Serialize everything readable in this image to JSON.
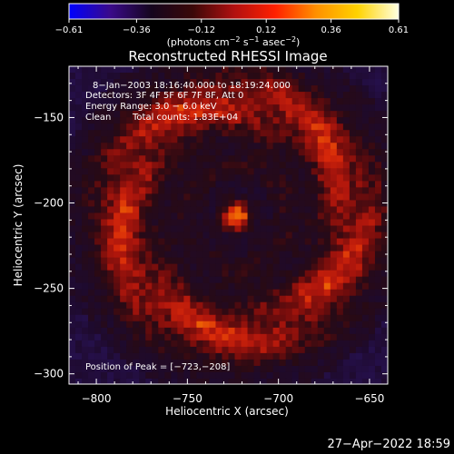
{
  "chart_data": {
    "type": "heatmap",
    "title": "Reconstructed RHESSI Image",
    "xlabel": "Heliocentric X (arcsec)",
    "ylabel": "Heliocentric Y (arcsec)",
    "xlim": [
      -815,
      -640
    ],
    "ylim": [
      -306,
      -120
    ],
    "x_ticks": [
      -800,
      -750,
      -700,
      -650
    ],
    "y_ticks": [
      -150,
      -200,
      -250,
      -300
    ],
    "x_tick_labels": [
      "−800",
      "−750",
      "−700",
      "−650"
    ],
    "y_tick_labels": [
      "−150",
      "−200",
      "−250",
      "−300"
    ],
    "colorbar": {
      "min": -0.61,
      "max": 0.61,
      "tick_values": [
        -0.61,
        -0.36,
        -0.12,
        0.12,
        0.36,
        0.61
      ],
      "tick_labels": [
        "−0.61",
        "−0.36",
        "−0.12",
        "0.12",
        "0.36",
        "0.61"
      ],
      "unit_parts": [
        "(photons cm",
        "−2",
        " s",
        "−1",
        " asec",
        "−2",
        ")"
      ],
      "colors": [
        "#0000ff",
        "#3a0a8a",
        "#15051e",
        "#3a0808",
        "#b01010",
        "#ff2000",
        "#ff9000",
        "#ffd200",
        "#ffffe0"
      ]
    },
    "annotations": [
      "8−Jan−2003 18:16:40.000 to 18:19:24.000",
      "Detectors: 3F 4F 5F 6F 7F 8F, Att 0",
      "Energy Range: 3.0 − 6.0 keV",
      "Clean",
      "Total counts: 1.83E+04",
      "Position of Peak = [−723,−208]"
    ],
    "peak": {
      "x": -723,
      "y": -208
    },
    "footer_date": "27−Apr−2022 18:59"
  }
}
